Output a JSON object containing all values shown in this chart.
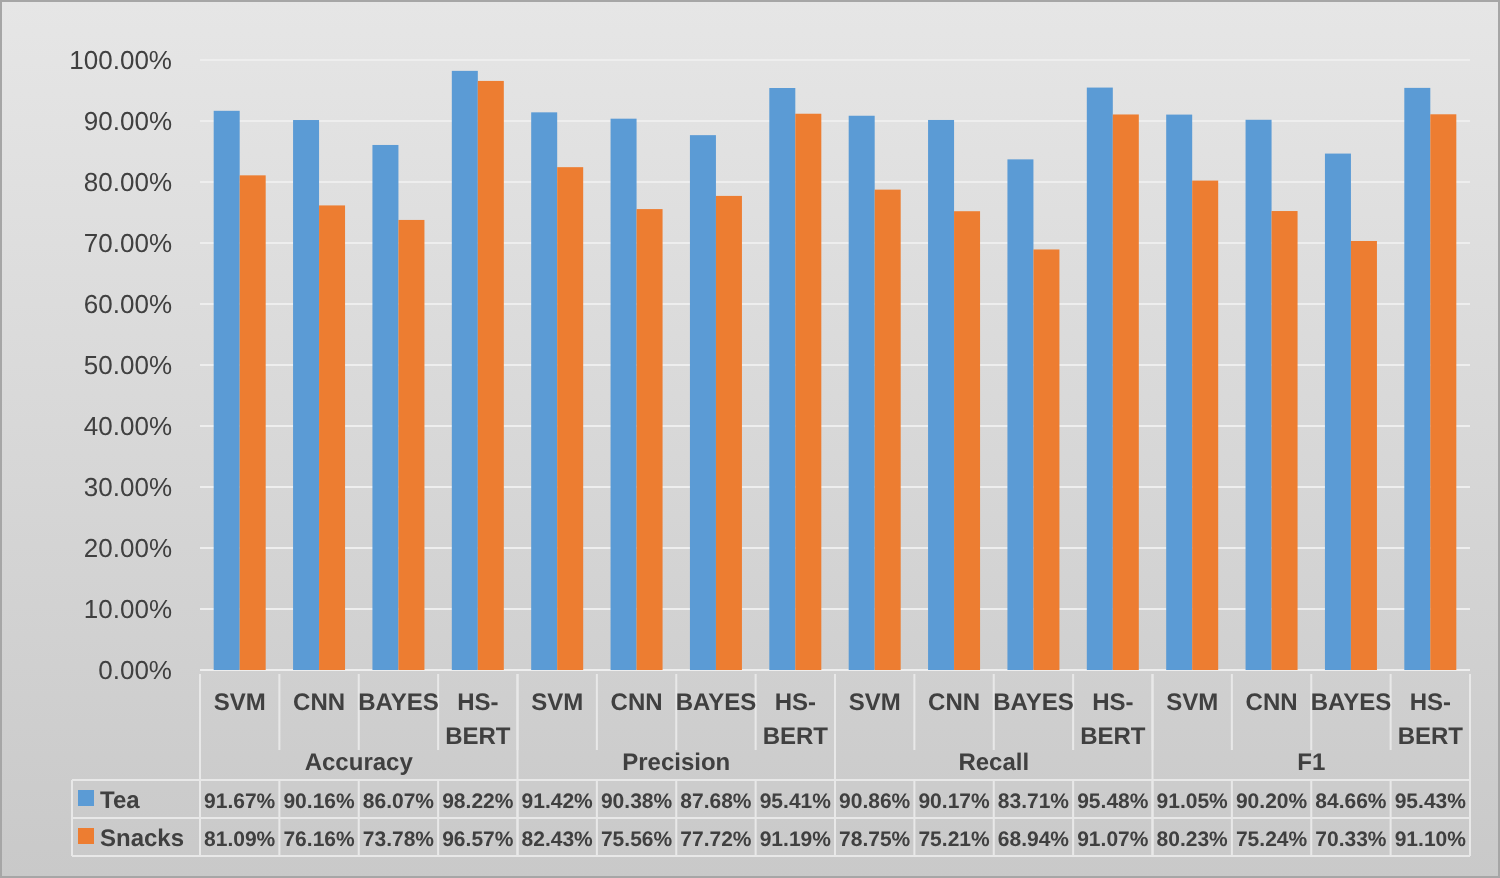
{
  "chart_data": {
    "type": "bar",
    "categories": [
      "SVM",
      "CNN",
      "BAYES",
      "HS-BERT",
      "SVM",
      "CNN",
      "BAYES",
      "HS-BERT",
      "SVM",
      "CNN",
      "BAYES",
      "HS-BERT",
      "SVM",
      "CNN",
      "BAYES",
      "HS-BERT"
    ],
    "annotations": [
      "Accuracy",
      "Precision",
      "Recall",
      "F1"
    ],
    "series": [
      {
        "name": "Tea",
        "color": "#5b9bd5",
        "values": [
          91.67,
          90.16,
          86.07,
          98.22,
          91.42,
          90.38,
          87.68,
          95.41,
          90.86,
          90.17,
          83.71,
          95.48,
          91.05,
          90.2,
          84.66,
          95.43
        ],
        "value_labels": [
          "91.67%",
          "90.16%",
          "86.07%",
          "98.22%",
          "91.42%",
          "90.38%",
          "87.68%",
          "95.41%",
          "90.86%",
          "90.17%",
          "83.71%",
          "95.48%",
          "91.05%",
          "90.20%",
          "84.66%",
          "95.43%"
        ]
      },
      {
        "name": "Snacks",
        "color": "#ed7d31",
        "values": [
          81.09,
          76.16,
          73.78,
          96.57,
          82.43,
          75.56,
          77.72,
          91.19,
          78.75,
          75.21,
          68.94,
          91.07,
          80.23,
          75.24,
          70.33,
          91.1
        ],
        "value_labels": [
          "81.09%",
          "76.16%",
          "73.78%",
          "96.57%",
          "82.43%",
          "75.56%",
          "77.72%",
          "91.19%",
          "78.75%",
          "75.21%",
          "68.94%",
          "91.07%",
          "80.23%",
          "75.24%",
          "70.33%",
          "91.10%"
        ]
      }
    ],
    "ylim": [
      0,
      100
    ],
    "yticks": [
      {
        "value": 0,
        "label": "0.00%"
      },
      {
        "value": 10,
        "label": "10.00%"
      },
      {
        "value": 20,
        "label": "20.00%"
      },
      {
        "value": 30,
        "label": "30.00%"
      },
      {
        "value": 40,
        "label": "40.00%"
      },
      {
        "value": 50,
        "label": "50.00%"
      },
      {
        "value": 60,
        "label": "60.00%"
      },
      {
        "value": 70,
        "label": "70.00%"
      },
      {
        "value": 80,
        "label": "80.00%"
      },
      {
        "value": 90,
        "label": "90.00%"
      },
      {
        "value": 100,
        "label": "100.00%"
      }
    ],
    "grid": "y",
    "legend": "bottom"
  }
}
